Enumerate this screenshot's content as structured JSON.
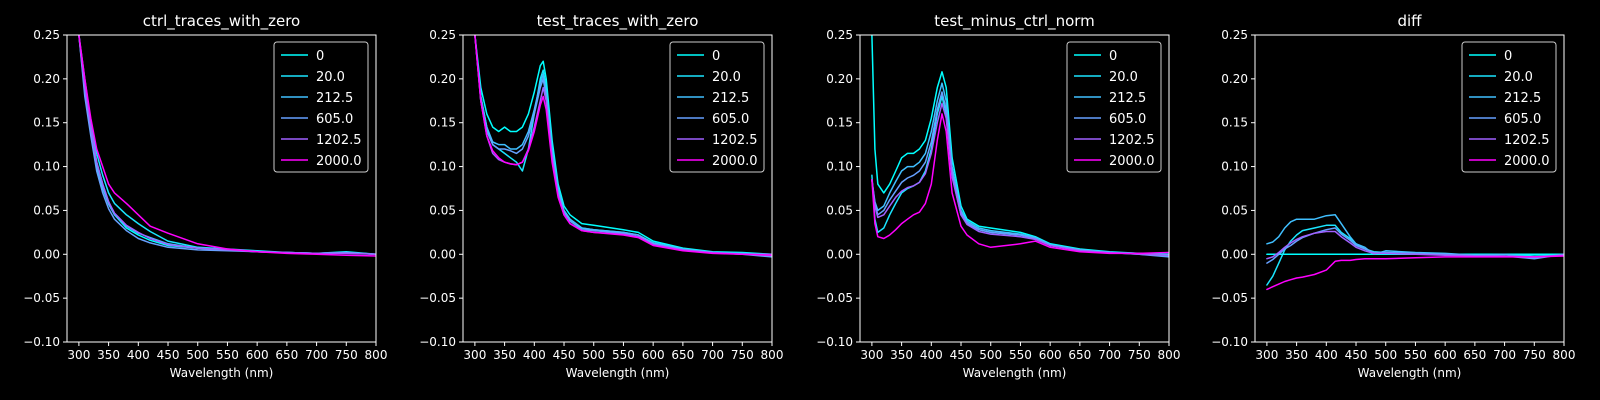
{
  "chart_data": [
    {
      "type": "line",
      "title": "ctrl_traces_with_zero",
      "xlabel": "Wavelength (nm)",
      "ylabel": "",
      "xlim": [
        280,
        800
      ],
      "ylim": [
        -0.1,
        0.25
      ],
      "x_ticks": [
        "300",
        "350",
        "400",
        "450",
        "500",
        "550",
        "600",
        "650",
        "700",
        "750",
        "800"
      ],
      "y_ticks": [
        "−0.10",
        "−0.05",
        "0.00",
        "0.05",
        "0.10",
        "0.15",
        "0.20",
        "0.25"
      ],
      "legend_position": "top-right",
      "grid": false,
      "x": [
        300,
        310,
        320,
        330,
        340,
        350,
        360,
        380,
        400,
        420,
        450,
        500,
        550,
        600,
        650,
        700,
        750,
        800
      ],
      "series": [
        {
          "name": "0",
          "color": "#00ffff",
          "values": [
            0.25,
            0.19,
            0.145,
            0.105,
            0.08,
            0.06,
            0.045,
            0.03,
            0.022,
            0.016,
            0.01,
            0.007,
            0.005,
            0.003,
            0.002,
            0.001,
            0.003,
            0.0
          ]
        },
        {
          "name": "20.0",
          "color": "#1ae5ff",
          "values": [
            0.25,
            0.2,
            0.15,
            0.115,
            0.09,
            0.07,
            0.058,
            0.045,
            0.035,
            0.026,
            0.015,
            0.008,
            0.006,
            0.004,
            0.002,
            0.001,
            0.002,
            0.0
          ]
        },
        {
          "name": "212.5",
          "color": "#40bfff",
          "values": [
            0.25,
            0.185,
            0.14,
            0.1,
            0.075,
            0.057,
            0.045,
            0.032,
            0.024,
            0.019,
            0.012,
            0.007,
            0.005,
            0.003,
            0.002,
            0.001,
            0.002,
            0.0
          ]
        },
        {
          "name": "605.0",
          "color": "#66a0ff",
          "values": [
            0.25,
            0.18,
            0.135,
            0.095,
            0.07,
            0.052,
            0.04,
            0.027,
            0.018,
            0.013,
            0.008,
            0.005,
            0.004,
            0.003,
            0.002,
            0.001,
            0.002,
            0.0
          ]
        },
        {
          "name": "1202.5",
          "color": "#a060ff",
          "values": [
            0.25,
            0.19,
            0.145,
            0.105,
            0.08,
            0.06,
            0.047,
            0.033,
            0.025,
            0.018,
            0.011,
            0.007,
            0.005,
            0.003,
            0.002,
            0.001,
            0.001,
            0.0
          ]
        },
        {
          "name": "2000.0",
          "color": "#ff00ff",
          "values": [
            0.25,
            0.2,
            0.155,
            0.12,
            0.1,
            0.08,
            0.07,
            0.058,
            0.045,
            0.032,
            0.024,
            0.012,
            0.006,
            0.003,
            0.001,
            0.0,
            -0.001,
            -0.002
          ]
        }
      ]
    },
    {
      "type": "line",
      "title": "test_traces_with_zero",
      "xlabel": "Wavelength (nm)",
      "ylabel": "",
      "xlim": [
        280,
        800
      ],
      "ylim": [
        -0.1,
        0.25
      ],
      "x_ticks": [
        "300",
        "350",
        "400",
        "450",
        "500",
        "550",
        "600",
        "650",
        "700",
        "750",
        "800"
      ],
      "y_ticks": [
        "−0.10",
        "−0.05",
        "0.00",
        "0.05",
        "0.10",
        "0.15",
        "0.20",
        "0.25"
      ],
      "legend_position": "top-right",
      "grid": false,
      "x": [
        300,
        310,
        320,
        330,
        340,
        350,
        360,
        370,
        380,
        390,
        400,
        410,
        415,
        420,
        430,
        440,
        450,
        460,
        480,
        500,
        550,
        575,
        600,
        650,
        700,
        750,
        800
      ],
      "series": [
        {
          "name": "0",
          "color": "#00ffff",
          "values": [
            0.25,
            0.19,
            0.16,
            0.145,
            0.14,
            0.145,
            0.14,
            0.14,
            0.145,
            0.16,
            0.185,
            0.215,
            0.22,
            0.2,
            0.13,
            0.08,
            0.055,
            0.045,
            0.035,
            0.033,
            0.028,
            0.025,
            0.015,
            0.007,
            0.003,
            0.002,
            0.0
          ]
        },
        {
          "name": "20.0",
          "color": "#1ae5ff",
          "values": [
            0.25,
            0.18,
            0.145,
            0.125,
            0.12,
            0.115,
            0.11,
            0.105,
            0.095,
            0.12,
            0.16,
            0.2,
            0.21,
            0.19,
            0.12,
            0.075,
            0.05,
            0.04,
            0.03,
            0.028,
            0.025,
            0.022,
            0.013,
            0.006,
            0.002,
            0.001,
            0.0
          ]
        },
        {
          "name": "212.5",
          "color": "#40bfff",
          "values": [
            0.25,
            0.18,
            0.145,
            0.128,
            0.125,
            0.125,
            0.12,
            0.12,
            0.125,
            0.14,
            0.165,
            0.195,
            0.205,
            0.185,
            0.12,
            0.075,
            0.05,
            0.04,
            0.03,
            0.028,
            0.025,
            0.022,
            0.013,
            0.006,
            0.002,
            0.001,
            -0.002
          ]
        },
        {
          "name": "605.0",
          "color": "#66a0ff",
          "values": [
            0.25,
            0.175,
            0.14,
            0.125,
            0.12,
            0.12,
            0.118,
            0.115,
            0.12,
            0.135,
            0.16,
            0.19,
            0.2,
            0.18,
            0.115,
            0.07,
            0.048,
            0.038,
            0.028,
            0.027,
            0.024,
            0.022,
            0.012,
            0.005,
            0.002,
            0.0,
            -0.003
          ]
        },
        {
          "name": "1202.5",
          "color": "#a060ff",
          "values": [
            0.25,
            0.175,
            0.135,
            0.115,
            0.108,
            0.105,
            0.103,
            0.102,
            0.105,
            0.12,
            0.145,
            0.175,
            0.19,
            0.175,
            0.11,
            0.068,
            0.045,
            0.035,
            0.027,
            0.025,
            0.023,
            0.02,
            0.011,
            0.005,
            0.002,
            0.0,
            0.0
          ]
        },
        {
          "name": "2000.0",
          "color": "#ff00ff",
          "values": [
            0.25,
            0.175,
            0.135,
            0.118,
            0.11,
            0.105,
            0.103,
            0.102,
            0.105,
            0.118,
            0.14,
            0.17,
            0.18,
            0.165,
            0.105,
            0.065,
            0.045,
            0.035,
            0.027,
            0.025,
            0.022,
            0.019,
            0.01,
            0.004,
            0.001,
            0.0,
            -0.001
          ]
        }
      ]
    },
    {
      "type": "line",
      "title": "test_minus_ctrl_norm",
      "xlabel": "Wavelength (nm)",
      "ylabel": "",
      "xlim": [
        280,
        800
      ],
      "ylim": [
        -0.1,
        0.25
      ],
      "x_ticks": [
        "300",
        "350",
        "400",
        "450",
        "500",
        "550",
        "600",
        "650",
        "700",
        "750",
        "800"
      ],
      "y_ticks": [
        "−0.10",
        "−0.05",
        "0.00",
        "0.05",
        "0.10",
        "0.15",
        "0.20",
        "0.25"
      ],
      "legend_position": "top-right",
      "grid": false,
      "x": [
        300,
        305,
        310,
        320,
        330,
        340,
        350,
        360,
        370,
        380,
        390,
        400,
        410,
        418,
        425,
        435,
        450,
        460,
        480,
        500,
        550,
        575,
        600,
        650,
        700,
        750,
        800
      ],
      "series": [
        {
          "name": "0",
          "color": "#00ffff",
          "values": [
            0.25,
            0.12,
            0.08,
            0.07,
            0.08,
            0.095,
            0.11,
            0.115,
            0.115,
            0.12,
            0.13,
            0.155,
            0.19,
            0.208,
            0.19,
            0.11,
            0.055,
            0.04,
            0.032,
            0.03,
            0.025,
            0.02,
            0.012,
            0.006,
            0.003,
            0.001,
            0.0
          ]
        },
        {
          "name": "20.0",
          "color": "#1ae5ff",
          "values": [
            0.09,
            0.04,
            0.025,
            0.03,
            0.045,
            0.058,
            0.07,
            0.075,
            0.078,
            0.082,
            0.095,
            0.12,
            0.16,
            0.18,
            0.16,
            0.09,
            0.045,
            0.035,
            0.028,
            0.025,
            0.022,
            0.018,
            0.01,
            0.005,
            0.002,
            0.001,
            -0.002
          ]
        },
        {
          "name": "212.5",
          "color": "#40bfff",
          "values": [
            0.085,
            0.06,
            0.05,
            0.055,
            0.07,
            0.083,
            0.095,
            0.1,
            0.1,
            0.105,
            0.115,
            0.14,
            0.175,
            0.195,
            0.175,
            0.1,
            0.05,
            0.038,
            0.03,
            0.027,
            0.023,
            0.019,
            0.011,
            0.005,
            0.002,
            0.001,
            -0.002
          ]
        },
        {
          "name": "605.0",
          "color": "#66a0ff",
          "values": [
            0.085,
            0.058,
            0.045,
            0.05,
            0.062,
            0.072,
            0.082,
            0.087,
            0.09,
            0.095,
            0.105,
            0.128,
            0.165,
            0.185,
            0.165,
            0.095,
            0.048,
            0.036,
            0.028,
            0.025,
            0.022,
            0.018,
            0.01,
            0.005,
            0.002,
            0.0,
            -0.003
          ]
        },
        {
          "name": "1202.5",
          "color": "#a060ff",
          "values": [
            0.085,
            0.055,
            0.042,
            0.045,
            0.055,
            0.065,
            0.072,
            0.076,
            0.078,
            0.082,
            0.092,
            0.115,
            0.15,
            0.172,
            0.155,
            0.088,
            0.045,
            0.034,
            0.026,
            0.023,
            0.02,
            0.017,
            0.01,
            0.004,
            0.002,
            0.0,
            -0.001
          ]
        },
        {
          "name": "2000.0",
          "color": "#ff00ff",
          "values": [
            0.085,
            0.035,
            0.02,
            0.018,
            0.022,
            0.028,
            0.035,
            0.04,
            0.045,
            0.048,
            0.058,
            0.08,
            0.13,
            0.16,
            0.14,
            0.07,
            0.032,
            0.022,
            0.012,
            0.008,
            0.012,
            0.015,
            0.008,
            0.003,
            0.001,
            0.001,
            0.002
          ]
        }
      ]
    },
    {
      "type": "line",
      "title": "diff",
      "xlabel": "Wavelength (nm)",
      "ylabel": "",
      "xlim": [
        280,
        800
      ],
      "ylim": [
        -0.1,
        0.25
      ],
      "x_ticks": [
        "300",
        "350",
        "400",
        "450",
        "500",
        "550",
        "600",
        "650",
        "700",
        "750",
        "800"
      ],
      "y_ticks": [
        "−0.10",
        "−0.05",
        "0.00",
        "0.05",
        "0.10",
        "0.15",
        "0.20",
        "0.25"
      ],
      "legend_position": "top-right",
      "grid": false,
      "x": [
        300,
        310,
        320,
        330,
        340,
        350,
        360,
        380,
        400,
        415,
        425,
        440,
        450,
        465,
        480,
        500,
        550,
        600,
        650,
        700,
        750,
        800
      ],
      "series": [
        {
          "name": "0",
          "color": "#00ffff",
          "values": [
            0.0,
            0.0,
            0.0,
            0.0,
            0.0,
            0.0,
            0.0,
            0.0,
            0.0,
            0.0,
            0.0,
            0.0,
            0.0,
            0.0,
            0.0,
            0.0,
            0.0,
            0.0,
            0.0,
            0.0,
            0.0,
            0.0
          ]
        },
        {
          "name": "20.0",
          "color": "#1ae5ff",
          "values": [
            -0.035,
            -0.025,
            -0.01,
            0.005,
            0.015,
            0.022,
            0.027,
            0.03,
            0.033,
            0.033,
            0.025,
            0.018,
            0.012,
            0.006,
            0.003,
            0.002,
            0.001,
            0.0,
            -0.001,
            0.0,
            -0.002,
            -0.001
          ]
        },
        {
          "name": "212.5",
          "color": "#40bfff",
          "values": [
            0.012,
            0.014,
            0.02,
            0.03,
            0.037,
            0.04,
            0.04,
            0.04,
            0.044,
            0.045,
            0.035,
            0.02,
            0.012,
            0.008,
            0.0,
            0.004,
            0.002,
            0.001,
            -0.001,
            0.0,
            -0.004,
            0.0
          ]
        },
        {
          "name": "605.0",
          "color": "#66a0ff",
          "values": [
            -0.01,
            -0.006,
            0.0,
            0.006,
            0.01,
            0.015,
            0.019,
            0.024,
            0.028,
            0.03,
            0.023,
            0.016,
            0.01,
            0.006,
            0.002,
            0.002,
            0.001,
            0.0,
            -0.001,
            -0.002,
            -0.005,
            0.0
          ]
        },
        {
          "name": "1202.5",
          "color": "#a060ff",
          "values": [
            -0.005,
            -0.003,
            0.002,
            0.008,
            0.013,
            0.017,
            0.02,
            0.024,
            0.026,
            0.026,
            0.02,
            0.013,
            0.008,
            0.004,
            0.001,
            0.001,
            0.0,
            -0.001,
            -0.002,
            -0.002,
            -0.003,
            -0.001
          ]
        },
        {
          "name": "2000.0",
          "color": "#ff00ff",
          "values": [
            -0.04,
            -0.037,
            -0.034,
            -0.031,
            -0.029,
            -0.027,
            -0.026,
            -0.023,
            -0.018,
            -0.008,
            -0.007,
            -0.007,
            -0.006,
            -0.005,
            -0.005,
            -0.005,
            -0.004,
            -0.003,
            -0.003,
            -0.003,
            -0.003,
            -0.002
          ]
        }
      ]
    }
  ]
}
